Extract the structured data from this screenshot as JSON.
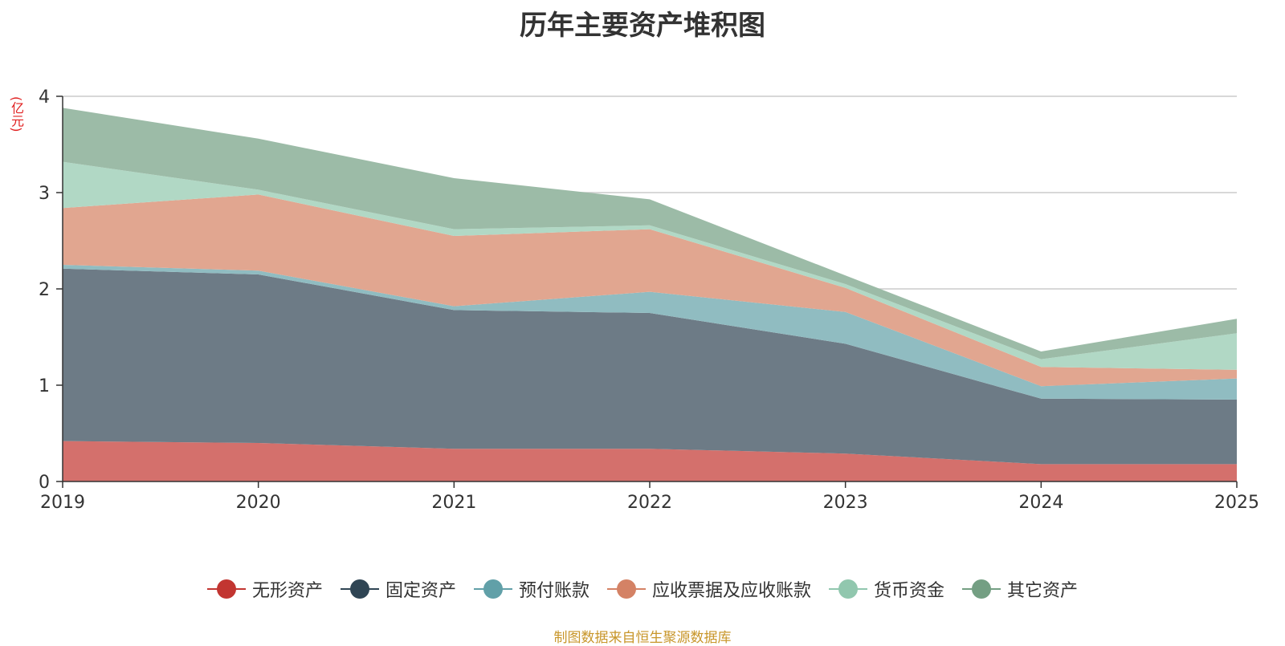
{
  "chart_data": {
    "type": "area",
    "stacked": true,
    "title": "历年主要资产堆积图",
    "ylabel": "(亿元)",
    "xlabel": "",
    "x": [
      "2019",
      "2020",
      "2021",
      "2022",
      "2023",
      "2024",
      "2025"
    ],
    "ylim": [
      0,
      4
    ],
    "yticks": [
      0,
      1,
      2,
      3,
      4
    ],
    "grid": true,
    "legend_position": "bottom",
    "series": [
      {
        "name": "无形资产",
        "color": "#c23531",
        "fill": "#d4706c",
        "values": [
          0.42,
          0.4,
          0.34,
          0.34,
          0.29,
          0.18,
          0.18
        ]
      },
      {
        "name": "固定资产",
        "color": "#2f4554",
        "fill": "#6d7b86",
        "values": [
          1.79,
          1.75,
          1.44,
          1.41,
          1.14,
          0.68,
          0.67
        ]
      },
      {
        "name": "预付账款",
        "color": "#61a0a8",
        "fill": "#90bcc1",
        "values": [
          0.04,
          0.04,
          0.04,
          0.22,
          0.33,
          0.13,
          0.22
        ]
      },
      {
        "name": "应收票据及应收账款",
        "color": "#d48265",
        "fill": "#e1a690",
        "values": [
          0.59,
          0.79,
          0.73,
          0.65,
          0.25,
          0.2,
          0.09
        ]
      },
      {
        "name": "货币资金",
        "color": "#91c7ae",
        "fill": "#b1d8c5",
        "values": [
          0.48,
          0.05,
          0.07,
          0.04,
          0.04,
          0.08,
          0.38
        ]
      },
      {
        "name": "其它资产",
        "color": "#749f83",
        "fill": "#9cbba7",
        "values": [
          0.56,
          0.53,
          0.53,
          0.27,
          0.09,
          0.08,
          0.15
        ]
      }
    ]
  },
  "source_note": "制图数据来自恒生聚源数据库"
}
